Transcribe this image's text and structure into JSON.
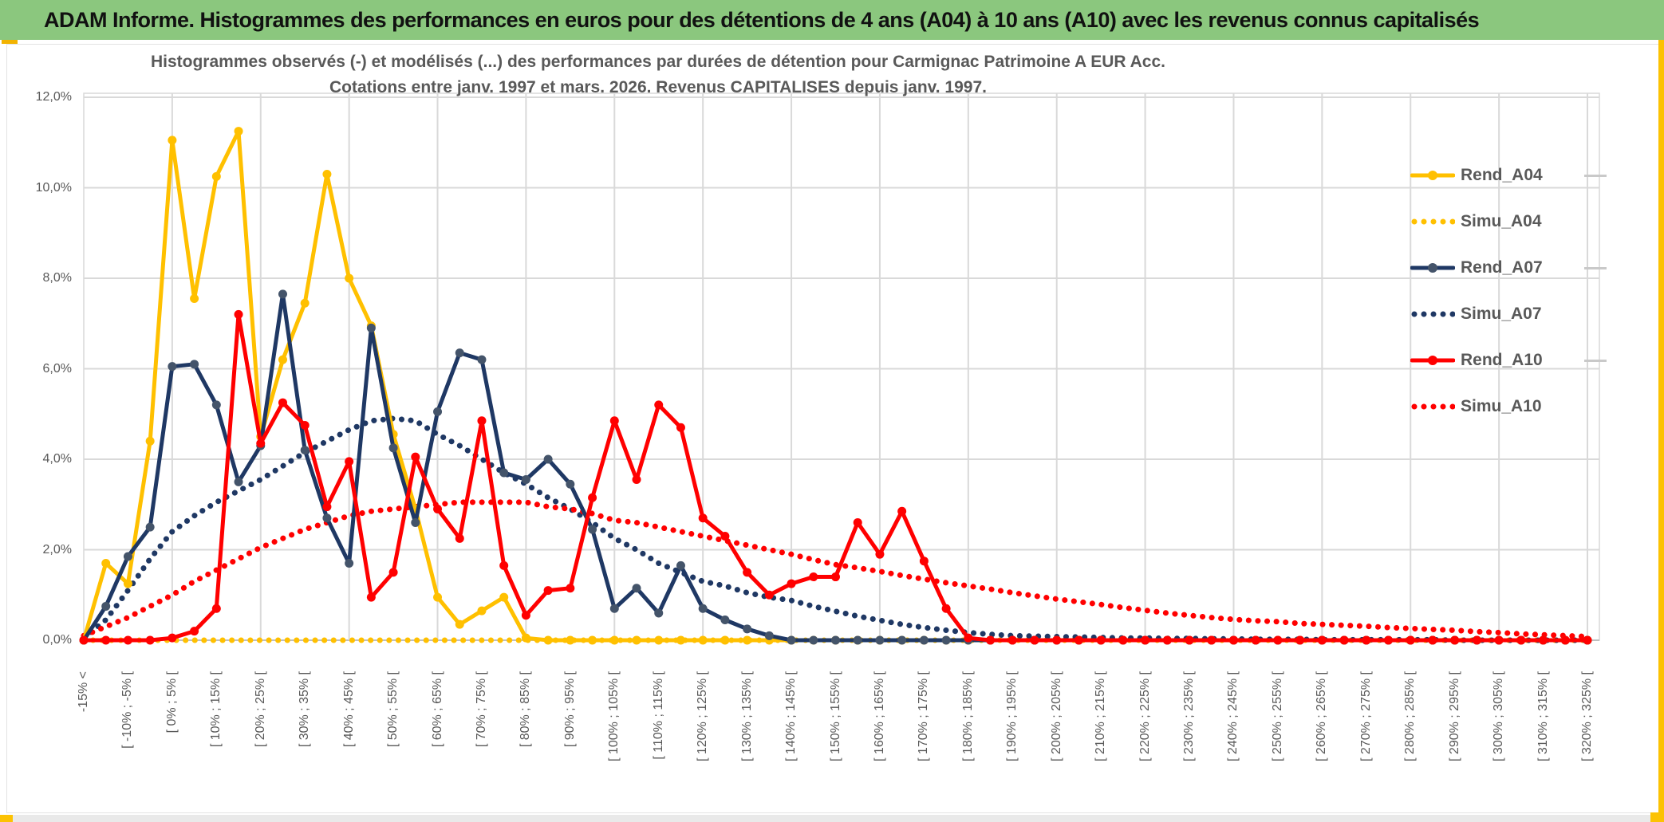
{
  "header": {
    "title": "ADAM Informe. Histogrammes des performances en euros pour des détentions de 4 ans (A04) à 10 ans (A10) avec les revenus connus capitalisés"
  },
  "colors": {
    "header_green": "#8bc77e",
    "accent_gold": "#fcc203",
    "series_gold": "#FFC000",
    "series_navy": "#1F3864",
    "navy_marker": "#44546A",
    "series_red": "#FF0000",
    "text_gray": "#595959",
    "gridline": "#d9d9d9",
    "axis_line": "#bfbfbf"
  },
  "legend": {
    "items": [
      {
        "label": "Rend_A04",
        "series": "Rend_A04",
        "style": "solid",
        "color": "#FFC000",
        "marker": "#FFC000"
      },
      {
        "label": "Simu_A04",
        "series": "Simu_A04",
        "style": "dotted",
        "color": "#FFC000",
        "marker": "#FFC000"
      },
      {
        "label": "Rend_A07",
        "series": "Rend_A07",
        "style": "solid",
        "color": "#1F3864",
        "marker": "#44546A"
      },
      {
        "label": "Simu_A07",
        "series": "Simu_A07",
        "style": "dotted",
        "color": "#1F3864",
        "marker": "#1F3864"
      },
      {
        "label": "Rend_A10",
        "series": "Rend_A10",
        "style": "solid",
        "color": "#FF0000",
        "marker": "#FF0000"
      },
      {
        "label": "Simu_A10",
        "series": "Simu_A10",
        "style": "dotted",
        "color": "#FF0000",
        "marker": "#FF0000"
      }
    ]
  },
  "chart_data": {
    "type": "line",
    "title_line1": "Histogrammes observés (-) et modélisés (...) des performances par durées de détention pour Carmignac Patrimoine A EUR Acc.",
    "title_line2": "Cotations entre janv. 1997 et mars. 2026. Revenus CAPITALISES depuis janv. 1997.",
    "ylabel": "",
    "xlabel": "",
    "ylim": [
      0,
      12
    ],
    "y_tick_step": 2,
    "y_tick_labels": [
      "0,0%",
      "2,0%",
      "4,0%",
      "6,0%",
      "8,0%",
      "10,0%",
      "12,0%"
    ],
    "grid": true,
    "legend_position": "right",
    "categories": [
      "-15% <",
      "",
      "[ -10% ; -5% [",
      "",
      "[ 0% ; 5% [",
      "",
      "[ 10% ; 15% [",
      "",
      "[ 20% ; 25% [",
      "",
      "[ 30% ; 35% [",
      "",
      "[ 40% ; 45% [",
      "",
      "[ 50% ; 55% [",
      "",
      "[ 60% ; 65% [",
      "",
      "[ 70% ; 75% [",
      "",
      "[ 80% ; 85% [",
      "",
      "[ 90% ; 95% [",
      "",
      "[ 100% ; 105% [",
      "",
      "[ 110% ; 115% [",
      "",
      "[ 120% ; 125% [",
      "",
      "[ 130% ; 135% [",
      "",
      "[ 140% ; 145% [",
      "",
      "[ 150% ; 155% [",
      "",
      "[ 160% ; 165% [",
      "",
      "[ 170% ; 175% [",
      "",
      "[ 180% ; 185% [",
      "",
      "[ 190% ; 195% [",
      "",
      "[ 200% ; 205% [",
      "",
      "[ 210% ; 215% [",
      "",
      "[ 220% ; 225% [",
      "",
      "[ 230% ; 235% [",
      "",
      "[ 240% ; 245% [",
      "",
      "[ 250% ; 255% [",
      "",
      "[ 260% ; 265% [",
      "",
      "[ 270% ; 275% [",
      "",
      "[ 280% ; 285% [",
      "",
      "[ 290% ; 295% [",
      "",
      "[ 300% ; 305% [",
      "",
      "[ 310% ; 315% [",
      "",
      "[ 320% ; 325% ["
    ],
    "series": [
      {
        "name": "Simu_A04",
        "style": "dotted",
        "color": "#FFC000",
        "values": [
          0,
          0,
          0,
          0,
          0,
          0,
          0,
          0,
          0,
          0,
          0,
          0,
          0,
          0,
          0,
          0,
          0,
          0,
          0,
          0,
          0,
          0,
          0,
          0,
          0,
          0,
          0,
          0,
          0,
          0,
          0,
          0,
          0,
          0,
          0,
          0,
          0,
          0,
          0,
          0,
          0,
          0,
          0,
          0,
          0,
          0,
          0,
          0,
          0,
          0,
          0,
          0,
          0,
          0,
          0,
          0,
          0,
          0,
          0,
          0,
          0,
          0,
          0,
          0,
          0,
          0,
          0,
          0,
          0
        ]
      },
      {
        "name": "Simu_A07",
        "style": "dotted",
        "color": "#1F3864",
        "values": [
          0.05,
          0.45,
          1.1,
          1.8,
          2.4,
          2.75,
          3.05,
          3.3,
          3.55,
          3.85,
          4.15,
          4.4,
          4.65,
          4.85,
          4.9,
          4.85,
          4.55,
          4.3,
          4.0,
          3.7,
          3.45,
          3.15,
          2.9,
          2.6,
          2.25,
          2.0,
          1.7,
          1.5,
          1.3,
          1.2,
          1.05,
          0.95,
          0.88,
          0.75,
          0.64,
          0.53,
          0.44,
          0.35,
          0.28,
          0.22,
          0.17,
          0.13,
          0.1,
          0.09,
          0.08,
          0.07,
          0.06,
          0.05,
          0.05,
          0.04,
          0.04,
          0.03,
          0.03,
          0.02,
          0.02,
          0.02,
          0.01,
          0.01,
          0.01,
          0.01,
          0.01,
          0.01,
          0,
          0,
          0,
          0,
          0,
          0,
          0
        ]
      },
      {
        "name": "Simu_A10",
        "style": "dotted",
        "color": "#FF0000",
        "values": [
          0.1,
          0.3,
          0.5,
          0.75,
          1.0,
          1.3,
          1.55,
          1.8,
          2.05,
          2.25,
          2.45,
          2.6,
          2.75,
          2.85,
          2.9,
          2.95,
          3.0,
          3.05,
          3.05,
          3.05,
          3.05,
          2.95,
          2.9,
          2.8,
          2.65,
          2.6,
          2.5,
          2.4,
          2.3,
          2.2,
          2.1,
          2.0,
          1.9,
          1.78,
          1.67,
          1.6,
          1.52,
          1.43,
          1.35,
          1.27,
          1.2,
          1.13,
          1.05,
          0.98,
          0.91,
          0.85,
          0.79,
          0.72,
          0.66,
          0.6,
          0.55,
          0.5,
          0.46,
          0.43,
          0.41,
          0.37,
          0.35,
          0.33,
          0.31,
          0.28,
          0.26,
          0.24,
          0.22,
          0.19,
          0.17,
          0.14,
          0.12,
          0.1,
          0.08
        ]
      },
      {
        "name": "Rend_A04",
        "style": "solid",
        "color": "#FFC000",
        "marker": "#FFC000",
        "values": [
          0,
          1.7,
          1.25,
          4.4,
          11.05,
          7.55,
          10.25,
          11.25,
          4.5,
          6.2,
          7.45,
          10.3,
          8.0,
          6.95,
          4.55,
          2.9,
          0.95,
          0.35,
          0.65,
          0.95,
          0.05,
          0,
          0,
          0,
          0,
          0,
          0,
          0,
          0,
          0,
          0,
          0,
          0,
          0,
          0,
          0,
          0,
          0,
          0,
          0,
          0,
          0,
          0,
          0,
          0,
          0,
          0,
          0,
          0,
          0,
          0,
          0,
          0,
          0,
          0,
          0,
          0,
          0,
          0,
          0,
          0,
          0,
          0,
          0,
          0,
          0,
          0,
          0,
          0
        ]
      },
      {
        "name": "Rend_A07",
        "style": "solid",
        "color": "#1F3864",
        "marker": "#44546A",
        "values": [
          0,
          0.75,
          1.85,
          2.5,
          6.05,
          6.1,
          5.2,
          3.5,
          4.3,
          7.65,
          4.2,
          2.7,
          1.7,
          6.9,
          4.25,
          2.6,
          5.05,
          6.35,
          6.2,
          3.7,
          3.55,
          4.0,
          3.45,
          2.45,
          0.7,
          1.15,
          0.6,
          1.65,
          0.7,
          0.45,
          0.25,
          0.1,
          0,
          0,
          0,
          0,
          0,
          0,
          0,
          0,
          0,
          0,
          0,
          0,
          0,
          0,
          0,
          0,
          0,
          0,
          0,
          0,
          0,
          0,
          0,
          0,
          0,
          0,
          0,
          0,
          0,
          0,
          0,
          0,
          0,
          0,
          0,
          0,
          0
        ]
      },
      {
        "name": "Rend_A10",
        "style": "solid",
        "color": "#FF0000",
        "marker": "#FF0000",
        "values": [
          0,
          0,
          0,
          0,
          0.05,
          0.2,
          0.7,
          7.2,
          4.35,
          5.25,
          4.75,
          2.95,
          3.95,
          0.95,
          1.5,
          4.05,
          2.9,
          2.25,
          4.85,
          1.65,
          0.55,
          1.1,
          1.15,
          3.15,
          4.85,
          3.55,
          5.2,
          4.7,
          2.7,
          2.3,
          1.5,
          1.0,
          1.25,
          1.4,
          1.4,
          2.6,
          1.9,
          2.85,
          1.75,
          0.7,
          0.05,
          0,
          0,
          0,
          0,
          0,
          0,
          0,
          0,
          0,
          0,
          0,
          0,
          0,
          0,
          0,
          0,
          0,
          0,
          0,
          0,
          0,
          0,
          0,
          0,
          0,
          0,
          0,
          0
        ]
      }
    ]
  }
}
